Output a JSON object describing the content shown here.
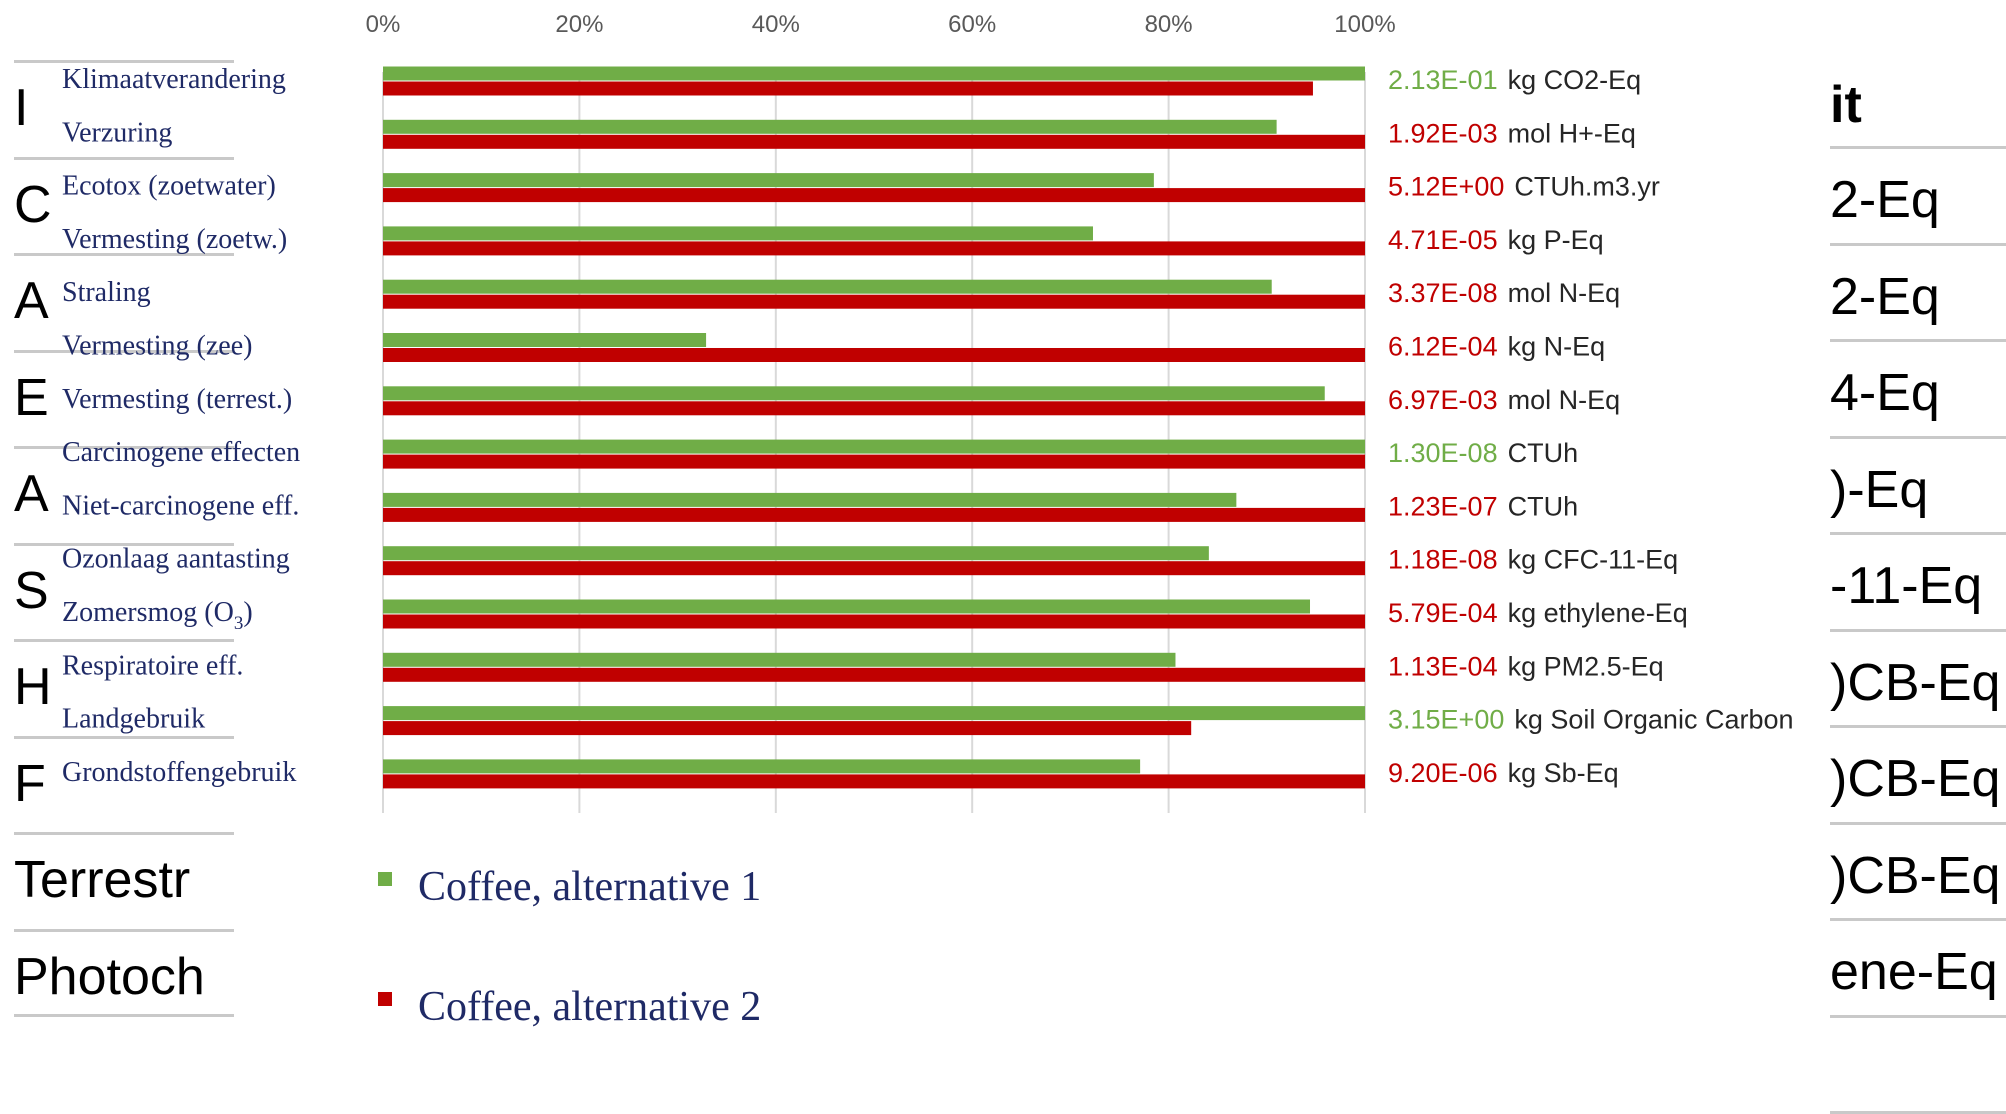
{
  "background_table": {
    "left_rows": [
      "I",
      "C",
      "A",
      "E",
      "A",
      "S",
      "H",
      "F",
      "Terrestr",
      "Photoch"
    ],
    "right_header": "it",
    "right_rows": [
      "2-Eq",
      "2-Eq",
      "4-Eq",
      ")-Eq",
      "-11-Eq",
      ")CB-Eq",
      ")CB-Eq",
      ")CB-Eq",
      "ene-Eq"
    ]
  },
  "chart_data": {
    "type": "bar",
    "orientation": "horizontal",
    "x_ticks": [
      "0%",
      "20%",
      "40%",
      "60%",
      "80%",
      "100%"
    ],
    "xlim": [
      0,
      100
    ],
    "grid": true,
    "categories": [
      {
        "label": "Klimaatverandering",
        "value_text": "2.13E-01",
        "unit": "kg CO2-Eq",
        "value_color": "#70ad47"
      },
      {
        "label": "Verzuring",
        "value_text": "1.92E-03",
        "unit": "mol H+-Eq",
        "value_color": "#c00000"
      },
      {
        "label": "Ecotox (zoetwater)",
        "value_text": "5.12E+00",
        "unit": "CTUh.m3.yr",
        "value_color": "#c00000"
      },
      {
        "label": "Vermesting (zoetw.)",
        "value_text": "4.71E-05",
        "unit": "kg P-Eq",
        "value_color": "#c00000"
      },
      {
        "label": "Straling",
        "value_text": "3.37E-08",
        "unit": "mol N-Eq",
        "value_color": "#c00000"
      },
      {
        "label": "Vermesting (zee)",
        "value_text": "6.12E-04",
        "unit": "kg N-Eq",
        "value_color": "#c00000"
      },
      {
        "label": "Vermesting (terrest.)",
        "value_text": "6.97E-03",
        "unit": "mol N-Eq",
        "value_color": "#c00000"
      },
      {
        "label": "Carcinogene effecten",
        "value_text": "1.30E-08",
        "unit": "CTUh",
        "value_color": "#70ad47"
      },
      {
        "label": "Niet-carcinogene eff.",
        "value_text": "1.23E-07",
        "unit": "CTUh",
        "value_color": "#c00000"
      },
      {
        "label": "Ozonlaag aantasting",
        "value_text": "1.18E-08",
        "unit": "kg CFC-11-Eq",
        "value_color": "#c00000"
      },
      {
        "label": "Zomersmog (O",
        "label_sub": "3",
        "label_after": ")",
        "value_text": "5.79E-04",
        "unit": "kg ethylene-Eq",
        "value_color": "#c00000"
      },
      {
        "label": "Respiratoire eff.",
        "value_text": "1.13E-04",
        "unit": "kg PM2.5-Eq",
        "value_color": "#c00000"
      },
      {
        "label": "Landgebruik",
        "value_text": "3.15E+00",
        "unit": "kg Soil Organic Carbon",
        "value_color": "#70ad47"
      },
      {
        "label": "Grondstoffengebruik",
        "value_text": "9.20E-06",
        "unit": "kg Sb-Eq",
        "value_color": "#c00000"
      }
    ],
    "series": [
      {
        "name": "Coffee, alternative 1",
        "color": "#70ad47",
        "values": [
          100,
          91,
          78.5,
          72.3,
          90.5,
          32.9,
          95.9,
          100,
          86.9,
          84.1,
          94.4,
          80.7,
          100,
          77.1
        ]
      },
      {
        "name": "Coffee, alternative 2",
        "color": "#c00000",
        "values": [
          94.7,
          100,
          100,
          100,
          100,
          100,
          100,
          100,
          100,
          100,
          100,
          100,
          82.3,
          100
        ]
      }
    ],
    "legend_position": "bottom-left"
  }
}
